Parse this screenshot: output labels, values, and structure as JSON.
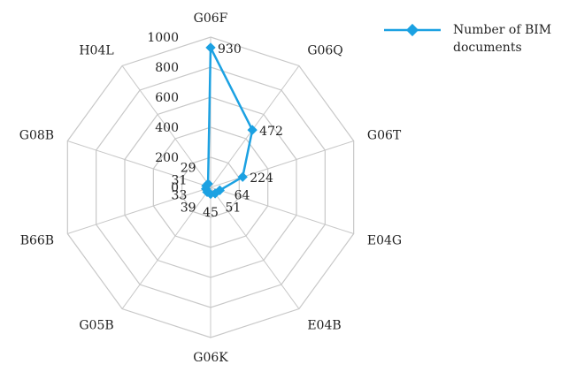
{
  "chart_data": {
    "type": "radar",
    "categories": [
      "G06F",
      "G06Q",
      "G06T",
      "E04G",
      "E04B",
      "G06K",
      "G05B",
      "B66B",
      "G08B",
      "H04L"
    ],
    "series": [
      {
        "name": "Number of BIM documents",
        "values": [
          930,
          472,
          224,
          64,
          51,
          45,
          39,
          33,
          31,
          29
        ],
        "color": "#1ba1e2"
      }
    ],
    "radial_ticks": [
      "0",
      "200",
      "400",
      "600",
      "800",
      "1000"
    ],
    "rmax": 1000,
    "grid": true,
    "legend": {
      "position": "top-right"
    }
  }
}
